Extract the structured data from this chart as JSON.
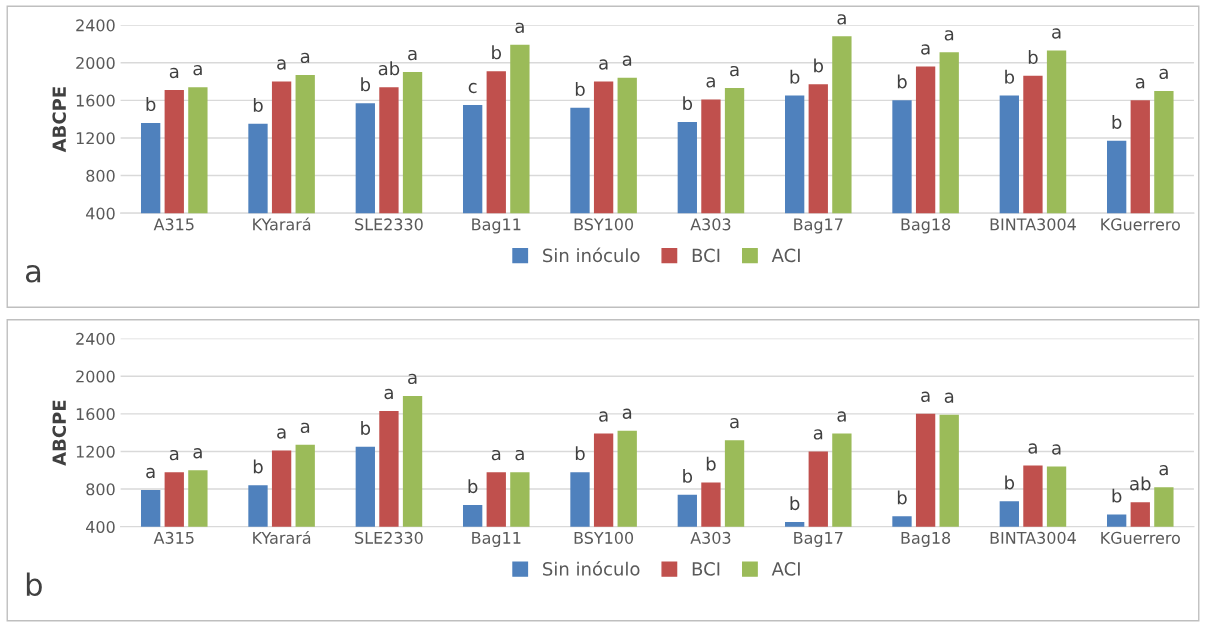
{
  "chart_data": [
    {
      "type": "bar",
      "ylabel": "ABCPE",
      "categories": [
        "A315",
        "KYarará",
        "SLE2330",
        "Bag11",
        "BSY100",
        "A303",
        "Bag17",
        "Bag18",
        "BINTA3004",
        "KGuerrero"
      ],
      "series": [
        {
          "name": "Sin inóculo",
          "color": "#4f81bd",
          "values": [
            1360,
            1350,
            1570,
            1550,
            1520,
            1370,
            1650,
            1600,
            1650,
            1170
          ],
          "value_labels": [
            "b",
            "b",
            "b",
            "c",
            "b",
            "b",
            "b",
            "b",
            "b",
            "b"
          ]
        },
        {
          "name": "BCI",
          "color": "#c0504d",
          "values": [
            1710,
            1800,
            1740,
            1910,
            1800,
            1610,
            1770,
            1960,
            1860,
            1600
          ],
          "value_labels": [
            "a",
            "a",
            "ab",
            "b",
            "a",
            "a",
            "b",
            "a",
            "b",
            "a"
          ]
        },
        {
          "name": "ACI",
          "color": "#9bbb59",
          "values": [
            1740,
            1870,
            1900,
            2190,
            1840,
            1730,
            2280,
            2110,
            2130,
            1700
          ],
          "value_labels": [
            "a",
            "a",
            "a",
            "a",
            "a",
            "a",
            "a",
            "a",
            "a",
            "a"
          ]
        }
      ],
      "ylim": [
        400,
        2400
      ],
      "yticks": [
        400,
        800,
        1200,
        1600,
        2000,
        2400
      ],
      "grid": "y",
      "legend": "bottom",
      "annotations": [
        "a"
      ]
    },
    {
      "type": "bar",
      "ylabel": "ABCPE",
      "categories": [
        "A315",
        "KYarará",
        "SLE2330",
        "Bag11",
        "BSY100",
        "A303",
        "Bag17",
        "Bag18",
        "BINTA3004",
        "KGuerrero"
      ],
      "series": [
        {
          "name": "Sin inóculo",
          "color": "#4f81bd",
          "values": [
            790,
            840,
            1250,
            630,
            980,
            740,
            450,
            510,
            670,
            530
          ],
          "value_labels": [
            "a",
            "b",
            "b",
            "b",
            "b",
            "b",
            "b",
            "b",
            "b",
            "b"
          ]
        },
        {
          "name": "BCI",
          "color": "#c0504d",
          "values": [
            980,
            1210,
            1630,
            980,
            1390,
            870,
            1200,
            1600,
            1050,
            660
          ],
          "value_labels": [
            "a",
            "a",
            "a",
            "a",
            "a",
            "b",
            "a",
            "a",
            "a",
            "ab"
          ]
        },
        {
          "name": "ACI",
          "color": "#9bbb59",
          "values": [
            1000,
            1270,
            1790,
            980,
            1420,
            1320,
            1390,
            1590,
            1040,
            820
          ],
          "value_labels": [
            "a",
            "a",
            "a",
            "a",
            "a",
            "a",
            "a",
            "a",
            "a",
            "a"
          ]
        }
      ],
      "ylim": [
        400,
        2400
      ],
      "yticks": [
        400,
        800,
        1200,
        1600,
        2000,
        2400
      ],
      "grid": "y",
      "legend": "bottom",
      "annotations": [
        "b"
      ]
    }
  ]
}
